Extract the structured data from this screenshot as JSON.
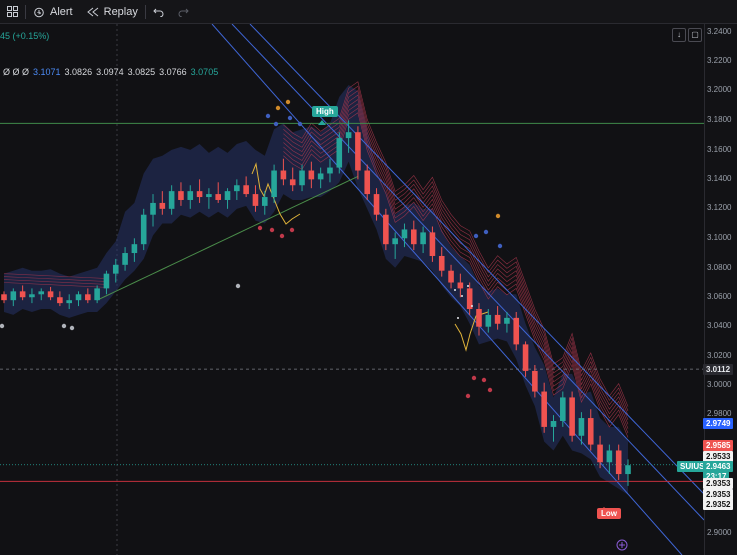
{
  "toolbar": {
    "alert_label": "Alert",
    "replay_label": "Replay"
  },
  "legend": {
    "change_text": "45 (+0.15%)",
    "ohlc_prefix": "Ø Ø Ø",
    "values": [
      "3.1071",
      "3.0826",
      "3.0974",
      "3.0825",
      "3.0766",
      "3.0705"
    ]
  },
  "price_scale": {
    "ticks": [
      "3.2400",
      "3.2200",
      "3.2000",
      "3.1800",
      "3.1600",
      "3.1400",
      "3.1200",
      "3.1000",
      "3.0800",
      "3.0600",
      "3.0400",
      "3.0200",
      "3.0000",
      "2.9800",
      "2.9000"
    ],
    "crosshair_value": "3.0112",
    "blue_tag": "2.9749",
    "red_tag": "2.9585",
    "white_tag_1": "2.9533",
    "symbol_tag": "SUIUSD",
    "current_price": "2.9463",
    "countdown": "23:17",
    "white_tag_2": "2.9353",
    "white_tag_3": "2.9353",
    "white_tag_4": "2.9352"
  },
  "annotations": {
    "high_label": "High",
    "low_label": "Low"
  },
  "colors": {
    "up": "#26a69a",
    "down": "#ef5350",
    "blue_line": "#3f66d6",
    "band": "#2a3a78",
    "red_ribbon": "#b2384f",
    "yellow": "#e0b33a",
    "green_line": "#4a8c4a",
    "red_line": "#c2303c"
  },
  "chart_data": {
    "type": "candlestick",
    "y_range": [
      2.89,
      3.245
    ],
    "high_line": 3.178,
    "low_line": 2.935,
    "crosshair_y": 3.0112,
    "candles": [
      [
        3.062,
        3.064,
        3.056,
        3.058
      ],
      [
        3.058,
        3.066,
        3.054,
        3.064
      ],
      [
        3.064,
        3.068,
        3.058,
        3.06
      ],
      [
        3.06,
        3.066,
        3.056,
        3.062
      ],
      [
        3.062,
        3.066,
        3.058,
        3.064
      ],
      [
        3.064,
        3.067,
        3.058,
        3.06
      ],
      [
        3.06,
        3.064,
        3.054,
        3.056
      ],
      [
        3.056,
        3.062,
        3.052,
        3.058
      ],
      [
        3.058,
        3.064,
        3.054,
        3.062
      ],
      [
        3.062,
        3.066,
        3.056,
        3.058
      ],
      [
        3.058,
        3.068,
        3.056,
        3.066
      ],
      [
        3.066,
        3.078,
        3.062,
        3.076
      ],
      [
        3.076,
        3.086,
        3.07,
        3.082
      ],
      [
        3.082,
        3.094,
        3.078,
        3.09
      ],
      [
        3.09,
        3.1,
        3.084,
        3.096
      ],
      [
        3.096,
        3.12,
        3.092,
        3.116
      ],
      [
        3.116,
        3.13,
        3.108,
        3.124
      ],
      [
        3.124,
        3.132,
        3.116,
        3.12
      ],
      [
        3.12,
        3.136,
        3.116,
        3.132
      ],
      [
        3.132,
        3.138,
        3.122,
        3.126
      ],
      [
        3.126,
        3.136,
        3.12,
        3.132
      ],
      [
        3.132,
        3.14,
        3.124,
        3.128
      ],
      [
        3.128,
        3.134,
        3.12,
        3.13
      ],
      [
        3.13,
        3.138,
        3.124,
        3.126
      ],
      [
        3.126,
        3.134,
        3.12,
        3.132
      ],
      [
        3.132,
        3.14,
        3.126,
        3.136
      ],
      [
        3.136,
        3.142,
        3.128,
        3.13
      ],
      [
        3.13,
        3.136,
        3.118,
        3.122
      ],
      [
        3.122,
        3.132,
        3.116,
        3.128
      ],
      [
        3.128,
        3.15,
        3.124,
        3.146
      ],
      [
        3.146,
        3.154,
        3.136,
        3.14
      ],
      [
        3.14,
        3.148,
        3.132,
        3.136
      ],
      [
        3.136,
        3.15,
        3.132,
        3.146
      ],
      [
        3.146,
        3.152,
        3.134,
        3.14
      ],
      [
        3.14,
        3.148,
        3.134,
        3.144
      ],
      [
        3.144,
        3.154,
        3.138,
        3.148
      ],
      [
        3.148,
        3.172,
        3.144,
        3.168
      ],
      [
        3.168,
        3.18,
        3.158,
        3.172
      ],
      [
        3.172,
        3.176,
        3.14,
        3.146
      ],
      [
        3.146,
        3.15,
        3.126,
        3.13
      ],
      [
        3.13,
        3.134,
        3.112,
        3.116
      ],
      [
        3.116,
        3.12,
        3.092,
        3.096
      ],
      [
        3.096,
        3.104,
        3.086,
        3.1
      ],
      [
        3.1,
        3.11,
        3.094,
        3.106
      ],
      [
        3.106,
        3.112,
        3.092,
        3.096
      ],
      [
        3.096,
        3.108,
        3.09,
        3.104
      ],
      [
        3.104,
        3.108,
        3.084,
        3.088
      ],
      [
        3.088,
        3.094,
        3.074,
        3.078
      ],
      [
        3.078,
        3.082,
        3.066,
        3.07
      ],
      [
        3.07,
        3.076,
        3.06,
        3.066
      ],
      [
        3.066,
        3.07,
        3.048,
        3.052
      ],
      [
        3.052,
        3.056,
        3.034,
        3.04
      ],
      [
        3.04,
        3.052,
        3.036,
        3.048
      ],
      [
        3.048,
        3.054,
        3.038,
        3.042
      ],
      [
        3.042,
        3.05,
        3.036,
        3.046
      ],
      [
        3.046,
        3.05,
        3.024,
        3.028
      ],
      [
        3.028,
        3.03,
        3.006,
        3.01
      ],
      [
        3.01,
        3.014,
        2.992,
        2.996
      ],
      [
        2.996,
        3.002,
        2.968,
        2.972
      ],
      [
        2.972,
        2.98,
        2.962,
        2.976
      ],
      [
        2.976,
        2.996,
        2.972,
        2.992
      ],
      [
        2.992,
        2.996,
        2.962,
        2.966
      ],
      [
        2.966,
        2.982,
        2.96,
        2.978
      ],
      [
        2.978,
        2.984,
        2.956,
        2.96
      ],
      [
        2.96,
        2.966,
        2.944,
        2.948
      ],
      [
        2.948,
        2.96,
        2.94,
        2.956
      ],
      [
        2.956,
        2.96,
        2.936,
        2.94
      ],
      [
        2.94,
        2.95,
        2.932,
        2.946
      ]
    ]
  }
}
